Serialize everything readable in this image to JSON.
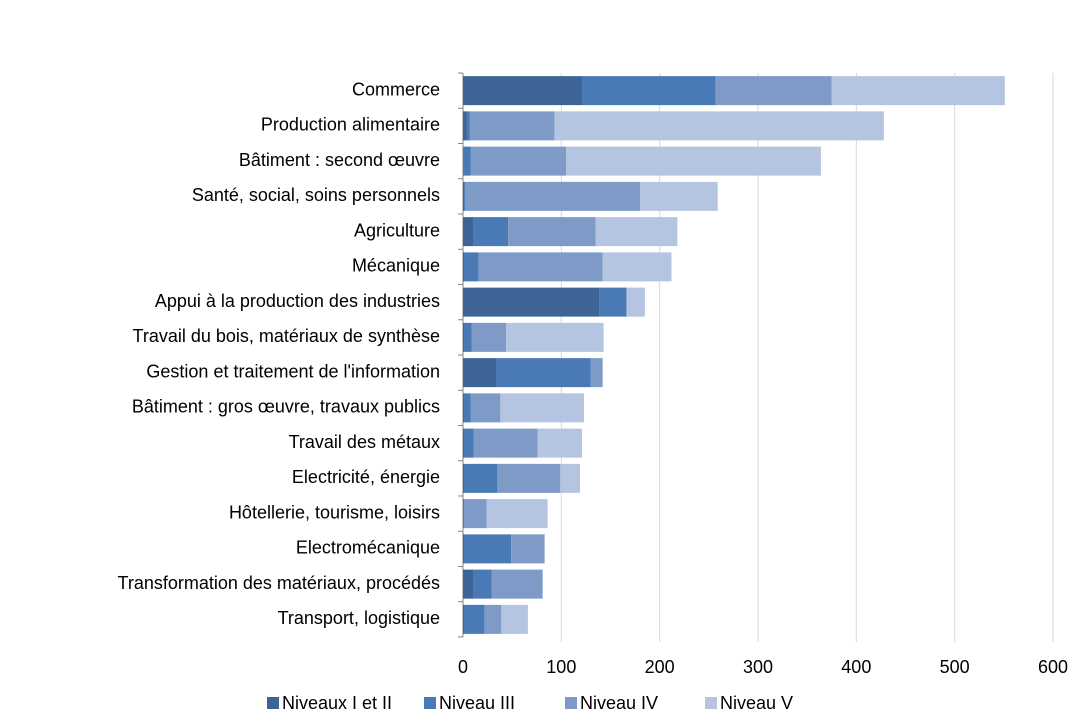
{
  "chart_data": {
    "type": "stacked_barh",
    "categories": [
      "Commerce",
      "Production alimentaire",
      "Bâtiment : second œuvre",
      "Santé, social, soins personnels",
      "Agriculture",
      "Mécanique",
      "Appui à la production des industries",
      "Travail du bois, matériaux de synthèse",
      "Gestion et traitement de l'information",
      "Bâtiment : gros œuvre, travaux publics",
      "Travail des métaux",
      "Electricité, énergie",
      "Hôtellerie, tourisme, loisirs",
      "Electromécanique",
      "Transformation des matériaux, procédés",
      "Transport, logistique"
    ],
    "series": [
      {
        "name": "Niveaux I et II",
        "color": "#3e6496",
        "values": [
          121,
          4,
          0,
          1,
          11,
          1,
          139,
          1,
          34,
          1,
          1,
          1,
          0,
          1,
          11,
          1
        ]
      },
      {
        "name": "Niveau III",
        "color": "#4a7ab5",
        "values": [
          136,
          3,
          8,
          1,
          35,
          15,
          27,
          8,
          96,
          7,
          10,
          34,
          1,
          48,
          18,
          21
        ]
      },
      {
        "name": "Niveau IV",
        "color": "#7e9bc8",
        "values": [
          118,
          86,
          97,
          178,
          89,
          126,
          1,
          35,
          12,
          30,
          65,
          64,
          23,
          34,
          52,
          17
        ]
      },
      {
        "name": "Niveau V",
        "color": "#b5c4e0",
        "values": [
          176,
          335,
          259,
          79,
          83,
          70,
          18,
          99,
          0,
          85,
          45,
          20,
          62,
          0,
          0,
          27
        ]
      }
    ],
    "xlim": [
      0,
      600
    ],
    "xticks": [
      0,
      100,
      200,
      300,
      400,
      500,
      600
    ],
    "grid": true,
    "legend": "bottom"
  }
}
